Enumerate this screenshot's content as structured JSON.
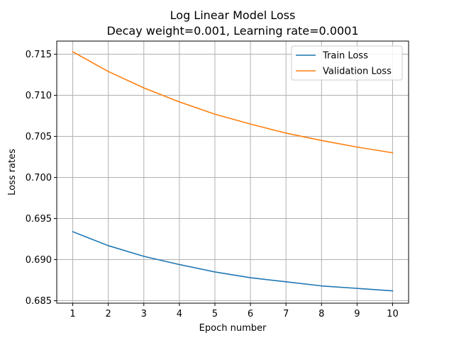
{
  "chart_data": {
    "type": "line",
    "title": "Log Linear Model Loss",
    "subtitle": "Decay weight=0.001, Learning rate=0.0001",
    "xlabel": "Epoch number",
    "ylabel": "Loss rates",
    "x": [
      1,
      2,
      3,
      4,
      5,
      6,
      7,
      8,
      9,
      10
    ],
    "xticks": [
      "1",
      "2",
      "3",
      "4",
      "5",
      "6",
      "7",
      "8",
      "9",
      "10"
    ],
    "yticks": [
      "0.685",
      "0.690",
      "0.695",
      "0.700",
      "0.705",
      "0.710",
      "0.715"
    ],
    "xlim": [
      0.55,
      10.45
    ],
    "ylim": [
      0.6847,
      0.7166
    ],
    "grid": true,
    "legend_position": "top-right",
    "series": [
      {
        "name": "Train Loss",
        "color": "#1f77b4",
        "values": [
          0.6934,
          0.6917,
          0.6904,
          0.6894,
          0.6885,
          0.6878,
          0.6873,
          0.6868,
          0.6865,
          0.6862
        ]
      },
      {
        "name": "Validation Loss",
        "color": "#ff7f0e",
        "values": [
          0.7153,
          0.7129,
          0.7109,
          0.7092,
          0.7077,
          0.7065,
          0.7054,
          0.7045,
          0.7037,
          0.703
        ]
      }
    ]
  }
}
